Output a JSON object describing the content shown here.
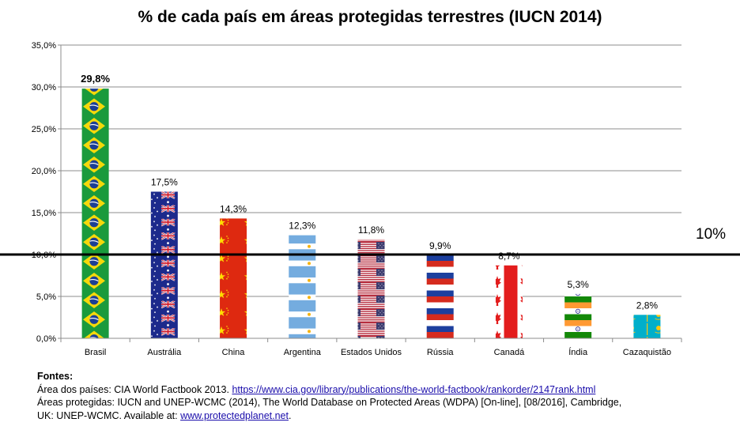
{
  "chart_data": {
    "type": "bar",
    "title": "% de cada país em áreas protegidas terrestres (IUCN 2014)",
    "categories": [
      "Brasil",
      "Austrália",
      "China",
      "Argentina",
      "Estados Unidos",
      "Rússia",
      "Canadá",
      "Índia",
      "Cazaquistão"
    ],
    "values": [
      29.8,
      17.5,
      14.3,
      12.3,
      11.8,
      9.9,
      8.7,
      5.3,
      2.8
    ],
    "value_labels": [
      "29,8%",
      "17,5%",
      "14,3%",
      "12,3%",
      "11,8%",
      "9,9%",
      "8,7%",
      "5,3%",
      "2,8%"
    ],
    "bar_fill": [
      "flag-brazil",
      "flag-australia",
      "flag-china",
      "flag-argentina",
      "flag-usa",
      "flag-russia",
      "flag-canada",
      "flag-india",
      "flag-kazakhstan"
    ],
    "ylim": [
      0,
      35
    ],
    "yticks": [
      0,
      5,
      10,
      15,
      20,
      25,
      30,
      35
    ],
    "ytick_labels": [
      "0,0%",
      "5,0%",
      "10,0%",
      "15,0%",
      "20,0%",
      "25,0%",
      "30,0%",
      "35,0%"
    ],
    "grid": true,
    "reference_line": {
      "value": 10,
      "label": "10%"
    }
  },
  "sources": {
    "heading": "Fontes:",
    "line1_text": "Área dos países: CIA World Factbook 2013. ",
    "line1_link": "https://www.cia.gov/library/publications/the-world-factbook/rankorder/2147rank.html",
    "line2_text": "Áreas protegidas: IUCN and UNEP-WCMC (2014), The World Database on Protected Areas (WDPA) [On-line], [08/2016], Cambridge,",
    "line3_text": "UK: UNEP-WCMC. Available at: ",
    "line3_link": "www.protectedplanet.net",
    "line3_end": "."
  }
}
